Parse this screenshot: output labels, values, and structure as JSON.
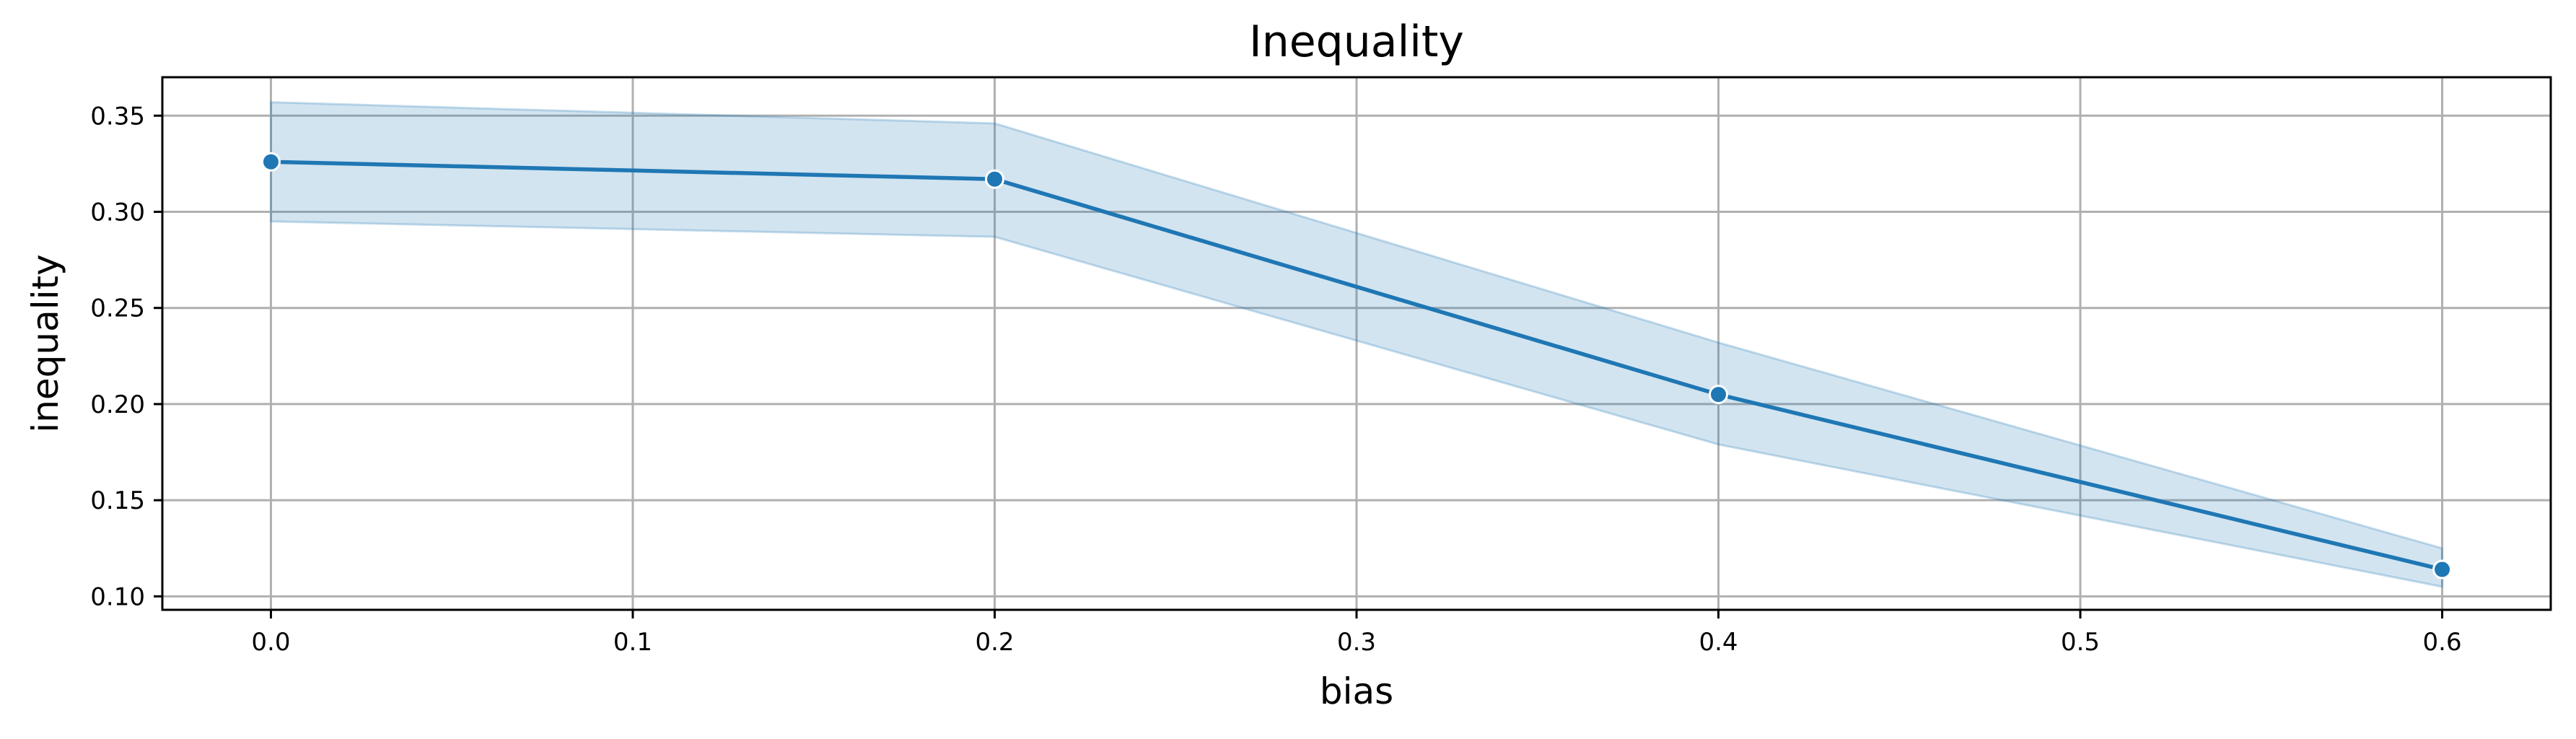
{
  "chart_data": {
    "type": "line",
    "title": "Inequality",
    "xlabel": "bias",
    "ylabel": "inequality",
    "xlim": [
      -0.03,
      0.63
    ],
    "ylim": [
      0.093,
      0.37
    ],
    "x_ticks": [
      0.0,
      0.1,
      0.2,
      0.3,
      0.4,
      0.5,
      0.6
    ],
    "x_tick_labels": [
      "0.0",
      "0.1",
      "0.2",
      "0.3",
      "0.4",
      "0.5",
      "0.6"
    ],
    "y_ticks": [
      0.1,
      0.15,
      0.2,
      0.25,
      0.3,
      0.35
    ],
    "y_tick_labels": [
      "0.10",
      "0.15",
      "0.20",
      "0.25",
      "0.30",
      "0.35"
    ],
    "grid": true,
    "series": [
      {
        "x": [
          0.0,
          0.2,
          0.4,
          0.6
        ],
        "y": [
          0.326,
          0.317,
          0.205,
          0.114
        ],
        "ci_lower": [
          0.295,
          0.287,
          0.179,
          0.105
        ],
        "ci_upper": [
          0.357,
          0.346,
          0.232,
          0.125
        ],
        "color": "#1f77b4",
        "band_color": "#1f77b4",
        "marker": "circle"
      }
    ]
  }
}
